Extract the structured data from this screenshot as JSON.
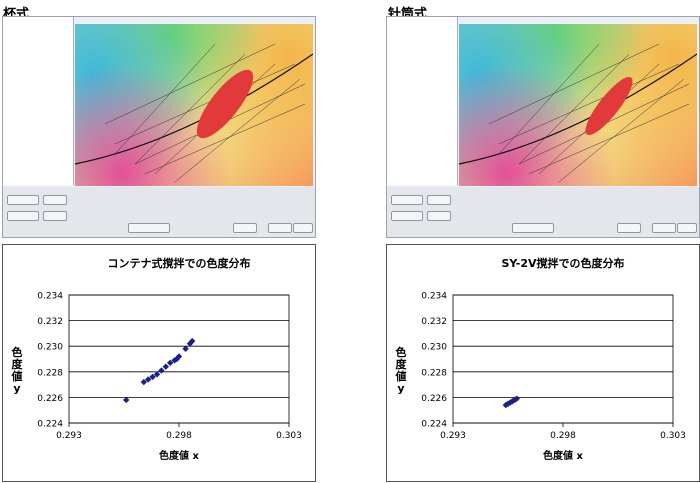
{
  "left_heading": "杯式",
  "right_heading": "针筒式",
  "charts": [
    {
      "title": "コンテナ式撹拌での色度分布",
      "xlabel": "色度値 x",
      "ylabel": "色度値 y",
      "xticks": [
        "0.293",
        "0.298",
        "0.303"
      ],
      "yticks": [
        "0.234",
        "0.232",
        "0.230",
        "0.228",
        "0.226",
        "0.224"
      ]
    },
    {
      "title": "SY-2V撹拌での色度分布",
      "xlabel": "色度値 x",
      "ylabel": "色度値 y",
      "xticks": [
        "0.293",
        "0.298",
        "0.303"
      ],
      "yticks": [
        "0.234",
        "0.232",
        "0.230",
        "0.228",
        "0.226",
        "0.224"
      ]
    }
  ],
  "chart_data": [
    {
      "type": "scatter",
      "title": "コンテナ式撹拌での色度分布",
      "xlabel": "色度値 x",
      "ylabel": "色度値 y",
      "xlim": [
        0.293,
        0.303
      ],
      "ylim": [
        0.224,
        0.234
      ],
      "grid": true,
      "marker_color": "#1a1f8c",
      "points": [
        [
          0.2956,
          0.2258
        ],
        [
          0.2964,
          0.2272
        ],
        [
          0.2966,
          0.2274
        ],
        [
          0.2968,
          0.2276
        ],
        [
          0.297,
          0.2278
        ],
        [
          0.2972,
          0.2281
        ],
        [
          0.2974,
          0.2284
        ],
        [
          0.2976,
          0.2287
        ],
        [
          0.2978,
          0.2289
        ],
        [
          0.2979,
          0.229
        ],
        [
          0.298,
          0.2292
        ],
        [
          0.2983,
          0.2298
        ],
        [
          0.2985,
          0.2302
        ],
        [
          0.2986,
          0.2304
        ]
      ]
    },
    {
      "type": "scatter",
      "title": "SY-2V撹拌での色度分布",
      "xlabel": "色度値 x",
      "ylabel": "色度値 y",
      "xlim": [
        0.293,
        0.303
      ],
      "ylim": [
        0.224,
        0.234
      ],
      "grid": true,
      "marker_color": "#1a1f8c",
      "points": [
        [
          0.2954,
          0.2254
        ],
        [
          0.2955,
          0.2255
        ],
        [
          0.2956,
          0.2256
        ],
        [
          0.2957,
          0.2257
        ],
        [
          0.2958,
          0.2258
        ],
        [
          0.2959,
          0.2259
        ]
      ]
    }
  ]
}
